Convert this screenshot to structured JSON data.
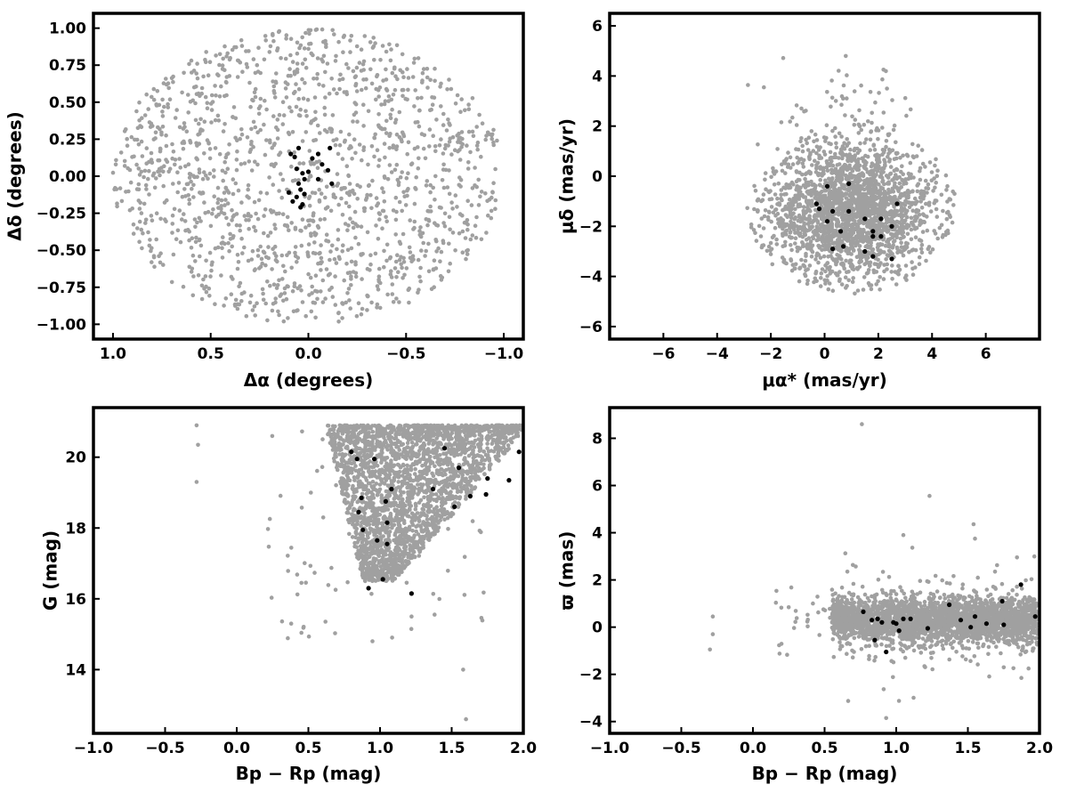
{
  "colors": {
    "field": "#a0a0a0",
    "members": "#000000"
  },
  "chart_data": [
    {
      "id": "sky",
      "type": "scatter",
      "xlabel": "Δα (degrees)",
      "ylabel": "Δδ (degrees)",
      "xlim": [
        1.1,
        -1.1
      ],
      "ylim": [
        -1.1,
        1.1
      ],
      "x_inverted": true,
      "xticks": [
        {
          "v": 1.0,
          "label": "1.0"
        },
        {
          "v": 0.5,
          "label": "0.5"
        },
        {
          "v": 0.0,
          "label": "0.0"
        },
        {
          "v": -0.5,
          "label": "−0.5"
        },
        {
          "v": -1.0,
          "label": "−1.0"
        }
      ],
      "yticks": [
        {
          "v": 1.0,
          "label": "1.00"
        },
        {
          "v": 0.75,
          "label": "0.75"
        },
        {
          "v": 0.5,
          "label": "0.50"
        },
        {
          "v": 0.25,
          "label": "0.25"
        },
        {
          "v": 0.0,
          "label": "0.00"
        },
        {
          "v": -0.25,
          "label": "−0.25"
        },
        {
          "v": -0.5,
          "label": "−0.50"
        },
        {
          "v": -0.75,
          "label": "−0.75"
        },
        {
          "v": -1.0,
          "label": "−1.00"
        }
      ],
      "field_distribution": "uniform disk of radius 1.0 deg centred at (0, 0)",
      "members": [
        [
          0.05,
          0.19
        ],
        [
          0.07,
          0.13
        ],
        [
          0.06,
          0.05
        ],
        [
          0.03,
          0.02
        ],
        [
          0.02,
          -0.02
        ],
        [
          0.05,
          -0.05
        ],
        [
          0.04,
          -0.09
        ],
        [
          0.02,
          -0.12
        ],
        [
          0.06,
          -0.14
        ],
        [
          0.1,
          -0.11
        ],
        [
          0.08,
          -0.17
        ],
        [
          0.03,
          -0.19
        ],
        [
          0.04,
          -0.21
        ],
        [
          0.0,
          0.03
        ],
        [
          -0.02,
          0.12
        ],
        [
          -0.05,
          0.15
        ],
        [
          -0.07,
          0.08
        ],
        [
          -0.05,
          -0.02
        ],
        [
          -0.1,
          0.04
        ],
        [
          -0.11,
          0.19
        ],
        [
          -0.12,
          -0.05
        ],
        [
          0.09,
          0.15
        ]
      ]
    },
    {
      "id": "proper-motion",
      "type": "scatter",
      "xlabel": "μα* (mas/yr)",
      "ylabel": "μδ (mas/yr)",
      "xlim": [
        -8,
        8
      ],
      "ylim": [
        -6.5,
        6.5
      ],
      "xticks": [
        {
          "v": -6,
          "label": "−6"
        },
        {
          "v": -4,
          "label": "−4"
        },
        {
          "v": -2,
          "label": "−2"
        },
        {
          "v": 0,
          "label": "0"
        },
        {
          "v": 2,
          "label": "2"
        },
        {
          "v": 4,
          "label": "4"
        },
        {
          "v": 6,
          "label": "6"
        }
      ],
      "yticks": [
        {
          "v": 6,
          "label": "6"
        },
        {
          "v": 4,
          "label": "4"
        },
        {
          "v": 2,
          "label": "2"
        },
        {
          "v": 0,
          "label": "0"
        },
        {
          "v": -2,
          "label": "−2"
        },
        {
          "v": -4,
          "label": "−4"
        },
        {
          "v": -6,
          "label": "−6"
        }
      ],
      "field_distribution": "dense cloud centred near (1.0, -1.5), spanning x -5 to 5, y -5 to 4.5",
      "members": [
        [
          0.1,
          -0.4
        ],
        [
          0.9,
          -0.3
        ],
        [
          -0.3,
          -1.1
        ],
        [
          -0.2,
          -1.3
        ],
        [
          0.3,
          -1.4
        ],
        [
          0.9,
          -1.4
        ],
        [
          0.1,
          -1.8
        ],
        [
          0.6,
          -2.2
        ],
        [
          0.3,
          -2.9
        ],
        [
          0.7,
          -2.8
        ],
        [
          1.5,
          -1.7
        ],
        [
          2.1,
          -1.7
        ],
        [
          2.7,
          -1.1
        ],
        [
          1.8,
          -2.2
        ],
        [
          1.8,
          -2.4
        ],
        [
          2.1,
          -2.4
        ],
        [
          2.5,
          -2.0
        ],
        [
          1.5,
          -3.0
        ],
        [
          1.8,
          -3.2
        ],
        [
          2.5,
          -3.3
        ]
      ]
    },
    {
      "id": "cmd",
      "type": "scatter",
      "xlabel": "Bp − Rp (mag)",
      "ylabel": "G (mag)",
      "xlim": [
        -1.0,
        2.0
      ],
      "ylim": [
        12.2,
        21.4
      ],
      "y_inverted": false,
      "xticks": [
        {
          "v": -1.0,
          "label": "−1.0"
        },
        {
          "v": -0.5,
          "label": "−0.5"
        },
        {
          "v": 0.0,
          "label": "0.0"
        },
        {
          "v": 0.5,
          "label": "0.5"
        },
        {
          "v": 1.0,
          "label": "1.0"
        },
        {
          "v": 1.5,
          "label": "1.5"
        },
        {
          "v": 2.0,
          "label": "2.0"
        }
      ],
      "yticks": [
        {
          "v": 20,
          "label": "20"
        },
        {
          "v": 18,
          "label": "18"
        },
        {
          "v": 16,
          "label": "16"
        },
        {
          "v": 14,
          "label": "14"
        }
      ],
      "field_distribution": "wedge from (0.9, 16.5) widening to x 0.5–2.0 at G 19–21",
      "members": [
        [
          0.8,
          20.15
        ],
        [
          0.84,
          19.95
        ],
        [
          0.96,
          19.95
        ],
        [
          0.85,
          18.45
        ],
        [
          0.87,
          18.85
        ],
        [
          0.88,
          17.95
        ],
        [
          0.92,
          16.3
        ],
        [
          0.98,
          17.65
        ],
        [
          1.02,
          16.55
        ],
        [
          1.04,
          18.75
        ],
        [
          1.05,
          18.15
        ],
        [
          1.05,
          17.55
        ],
        [
          1.08,
          19.1
        ],
        [
          1.22,
          16.15
        ],
        [
          1.37,
          19.1
        ],
        [
          1.45,
          20.25
        ],
        [
          1.52,
          18.6
        ],
        [
          1.55,
          19.7
        ],
        [
          1.63,
          18.9
        ],
        [
          1.74,
          18.95
        ],
        [
          1.75,
          19.4
        ],
        [
          1.9,
          19.35
        ],
        [
          1.97,
          20.15
        ]
      ]
    },
    {
      "id": "parallax",
      "type": "scatter",
      "xlabel": "Bp − Rp (mag)",
      "ylabel": "ϖ (mas)",
      "xlim": [
        -1.0,
        2.0
      ],
      "ylim": [
        -4.5,
        9.3
      ],
      "xticks": [
        {
          "v": -1.0,
          "label": "−1.0"
        },
        {
          "v": -0.5,
          "label": "−0.5"
        },
        {
          "v": 0.0,
          "label": "0.0"
        },
        {
          "v": 0.5,
          "label": "0.5"
        },
        {
          "v": 1.0,
          "label": "1.0"
        },
        {
          "v": 1.5,
          "label": "1.5"
        },
        {
          "v": 2.0,
          "label": "2.0"
        }
      ],
      "yticks": [
        {
          "v": 8,
          "label": "8"
        },
        {
          "v": 6,
          "label": "6"
        },
        {
          "v": 4,
          "label": "4"
        },
        {
          "v": 2,
          "label": "2"
        },
        {
          "v": 0,
          "label": "0"
        },
        {
          "v": -2,
          "label": "−2"
        },
        {
          "v": -4,
          "label": "−4"
        }
      ],
      "field_distribution": "horizontal band near ϖ 0.3 spanning x 0.5–2.0",
      "members": [
        [
          0.77,
          0.65
        ],
        [
          0.83,
          0.3
        ],
        [
          0.85,
          -0.55
        ],
        [
          0.87,
          0.35
        ],
        [
          0.9,
          0.2
        ],
        [
          0.93,
          -1.05
        ],
        [
          0.98,
          0.2
        ],
        [
          1.0,
          0.15
        ],
        [
          1.02,
          -0.15
        ],
        [
          1.05,
          0.35
        ],
        [
          1.1,
          0.35
        ],
        [
          1.22,
          -0.05
        ],
        [
          1.37,
          0.95
        ],
        [
          1.45,
          0.3
        ],
        [
          1.52,
          0.0
        ],
        [
          1.55,
          0.45
        ],
        [
          1.63,
          0.15
        ],
        [
          1.74,
          1.1
        ],
        [
          1.75,
          0.1
        ],
        [
          1.87,
          1.8
        ],
        [
          1.97,
          0.45
        ]
      ]
    }
  ]
}
